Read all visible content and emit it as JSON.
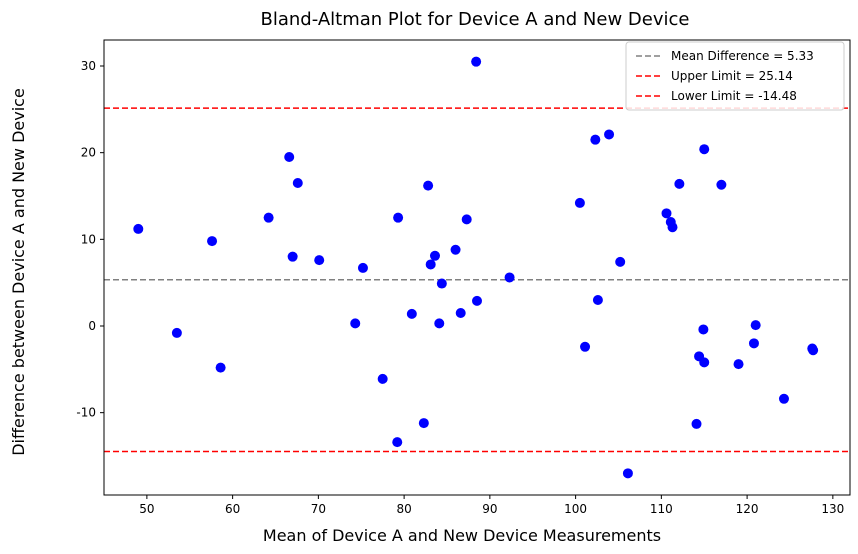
{
  "chart_data": {
    "type": "scatter",
    "title": "Bland-Altman Plot for Device A and New Device",
    "xlabel": "Mean of Device A and New Device Measurements",
    "ylabel": "Difference between Device A and New Device",
    "xlim": [
      45,
      132
    ],
    "ylim": [
      -19.5,
      33
    ],
    "xticks": [
      50,
      60,
      70,
      80,
      90,
      100,
      110,
      120,
      130
    ],
    "yticks": [
      -10,
      0,
      10,
      20,
      30
    ],
    "grid": false,
    "legend_position": "top-right",
    "point_color": "#0000ff",
    "points": [
      {
        "x": 49.0,
        "y": 11.2
      },
      {
        "x": 53.5,
        "y": -0.8
      },
      {
        "x": 57.6,
        "y": 9.8
      },
      {
        "x": 58.6,
        "y": -4.8
      },
      {
        "x": 64.2,
        "y": 12.5
      },
      {
        "x": 66.6,
        "y": 19.5
      },
      {
        "x": 67.0,
        "y": 8.0
      },
      {
        "x": 67.6,
        "y": 16.5
      },
      {
        "x": 70.1,
        "y": 7.6
      },
      {
        "x": 74.3,
        "y": 0.3
      },
      {
        "x": 75.2,
        "y": 6.7
      },
      {
        "x": 77.5,
        "y": -6.1
      },
      {
        "x": 79.2,
        "y": -13.4
      },
      {
        "x": 79.3,
        "y": 12.5
      },
      {
        "x": 80.9,
        "y": 1.4
      },
      {
        "x": 82.3,
        "y": -11.2
      },
      {
        "x": 82.8,
        "y": 16.2
      },
      {
        "x": 83.1,
        "y": 7.1
      },
      {
        "x": 83.6,
        "y": 8.1
      },
      {
        "x": 84.1,
        "y": 0.3
      },
      {
        "x": 84.4,
        "y": 4.9
      },
      {
        "x": 86.0,
        "y": 8.8
      },
      {
        "x": 86.6,
        "y": 1.5
      },
      {
        "x": 87.3,
        "y": 12.3
      },
      {
        "x": 88.4,
        "y": 30.5
      },
      {
        "x": 88.5,
        "y": 2.9
      },
      {
        "x": 92.3,
        "y": 5.6
      },
      {
        "x": 100.5,
        "y": 14.2
      },
      {
        "x": 101.1,
        "y": -2.4
      },
      {
        "x": 102.3,
        "y": 21.5
      },
      {
        "x": 102.6,
        "y": 3.0
      },
      {
        "x": 103.9,
        "y": 22.1
      },
      {
        "x": 105.2,
        "y": 7.4
      },
      {
        "x": 106.1,
        "y": -17.0
      },
      {
        "x": 110.6,
        "y": 13.0
      },
      {
        "x": 111.1,
        "y": 12.0
      },
      {
        "x": 111.3,
        "y": 11.4
      },
      {
        "x": 112.1,
        "y": 16.4
      },
      {
        "x": 114.1,
        "y": -11.3
      },
      {
        "x": 114.4,
        "y": -3.5
      },
      {
        "x": 114.9,
        "y": -0.4
      },
      {
        "x": 115.0,
        "y": 20.4
      },
      {
        "x": 115.0,
        "y": -4.2
      },
      {
        "x": 117.0,
        "y": 16.3
      },
      {
        "x": 119.0,
        "y": -4.4
      },
      {
        "x": 120.8,
        "y": -2.0
      },
      {
        "x": 121.0,
        "y": 0.1
      },
      {
        "x": 124.3,
        "y": -8.4
      },
      {
        "x": 127.6,
        "y": -2.6
      },
      {
        "x": 127.7,
        "y": -2.8
      }
    ],
    "reference_lines": [
      {
        "name": "Mean Difference = 5.33",
        "y": 5.33,
        "color": "#808080"
      },
      {
        "name": "Upper Limit = 25.14",
        "y": 25.14,
        "color": "#ff0000"
      },
      {
        "name": "Lower Limit = -14.48",
        "y": -14.48,
        "color": "#ff0000"
      }
    ]
  }
}
